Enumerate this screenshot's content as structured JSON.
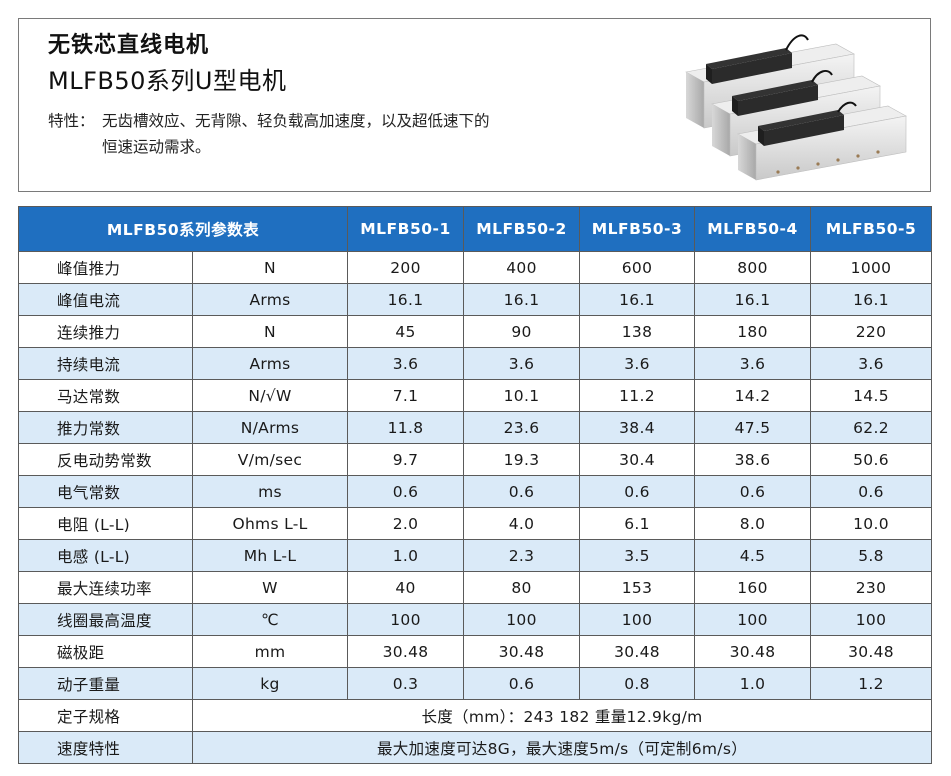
{
  "header": {
    "title": "无铁芯直线电机",
    "subtitle": "MLFB50系列U型电机",
    "feature_label": "特性：",
    "feature_line1": "无齿槽效应、无背隙、轻负载高加速度，以及超低速下的",
    "feature_line2": "恒速运动需求。"
  },
  "product_image": {
    "icon": "linear-motor-product-photo"
  },
  "table": {
    "header_title": "MLFB50系列参数表",
    "models": [
      "MLFB50-1",
      "MLFB50-2",
      "MLFB50-3",
      "MLFB50-4",
      "MLFB50-5"
    ],
    "rows": [
      {
        "name": "峰值推力",
        "unit": "N",
        "values": [
          "200",
          "400",
          "600",
          "800",
          "1000"
        ]
      },
      {
        "name": "峰值电流",
        "unit": "Arms",
        "values": [
          "16.1",
          "16.1",
          "16.1",
          "16.1",
          "16.1"
        ]
      },
      {
        "name": "连续推力",
        "unit": "N",
        "values": [
          "45",
          "90",
          "138",
          "180",
          "220"
        ]
      },
      {
        "name": "持续电流",
        "unit": "Arms",
        "values": [
          "3.6",
          "3.6",
          "3.6",
          "3.6",
          "3.6"
        ]
      },
      {
        "name": "马达常数",
        "unit": "N/√W",
        "values": [
          "7.1",
          "10.1",
          "11.2",
          "14.2",
          "14.5"
        ]
      },
      {
        "name": "推力常数",
        "unit": "N/Arms",
        "values": [
          "11.8",
          "23.6",
          "38.4",
          "47.5",
          "62.2"
        ]
      },
      {
        "name": "反电动势常数",
        "unit": "V/m/sec",
        "values": [
          "9.7",
          "19.3",
          "30.4",
          "38.6",
          "50.6"
        ]
      },
      {
        "name": "电气常数",
        "unit": "ms",
        "values": [
          "0.6",
          "0.6",
          "0.6",
          "0.6",
          "0.6"
        ]
      },
      {
        "name": "电阻 (L-L)",
        "unit": "Ohms L-L",
        "values": [
          "2.0",
          "4.0",
          "6.1",
          "8.0",
          "10.0"
        ]
      },
      {
        "name": "电感 (L-L)",
        "unit": "Mh L-L",
        "values": [
          "1.0",
          "2.3",
          "3.5",
          "4.5",
          "5.8"
        ]
      },
      {
        "name": "最大连续功率",
        "unit": "W",
        "values": [
          "40",
          "80",
          "153",
          "160",
          "230"
        ]
      },
      {
        "name": "线圈最高温度",
        "unit": "℃",
        "values": [
          "100",
          "100",
          "100",
          "100",
          "100"
        ]
      },
      {
        "name": "磁极距",
        "unit": "mm",
        "values": [
          "30.48",
          "30.48",
          "30.48",
          "30.48",
          "30.48"
        ]
      },
      {
        "name": "动子重量",
        "unit": "kg",
        "values": [
          "0.3",
          "0.6",
          "0.8",
          "1.0",
          "1.2"
        ]
      }
    ],
    "stator_label": "定子规格",
    "stator_value": "长度（mm）：243   182   重量12.9kg/m",
    "speed_label": "速度特性",
    "speed_value": "最大加速度可达8G，最大速度5m/s（可定制6m/s）"
  },
  "colors": {
    "header_blue": "#1f6fc0",
    "row_alt": "#daeaf8",
    "border": "#5a5a5a"
  }
}
